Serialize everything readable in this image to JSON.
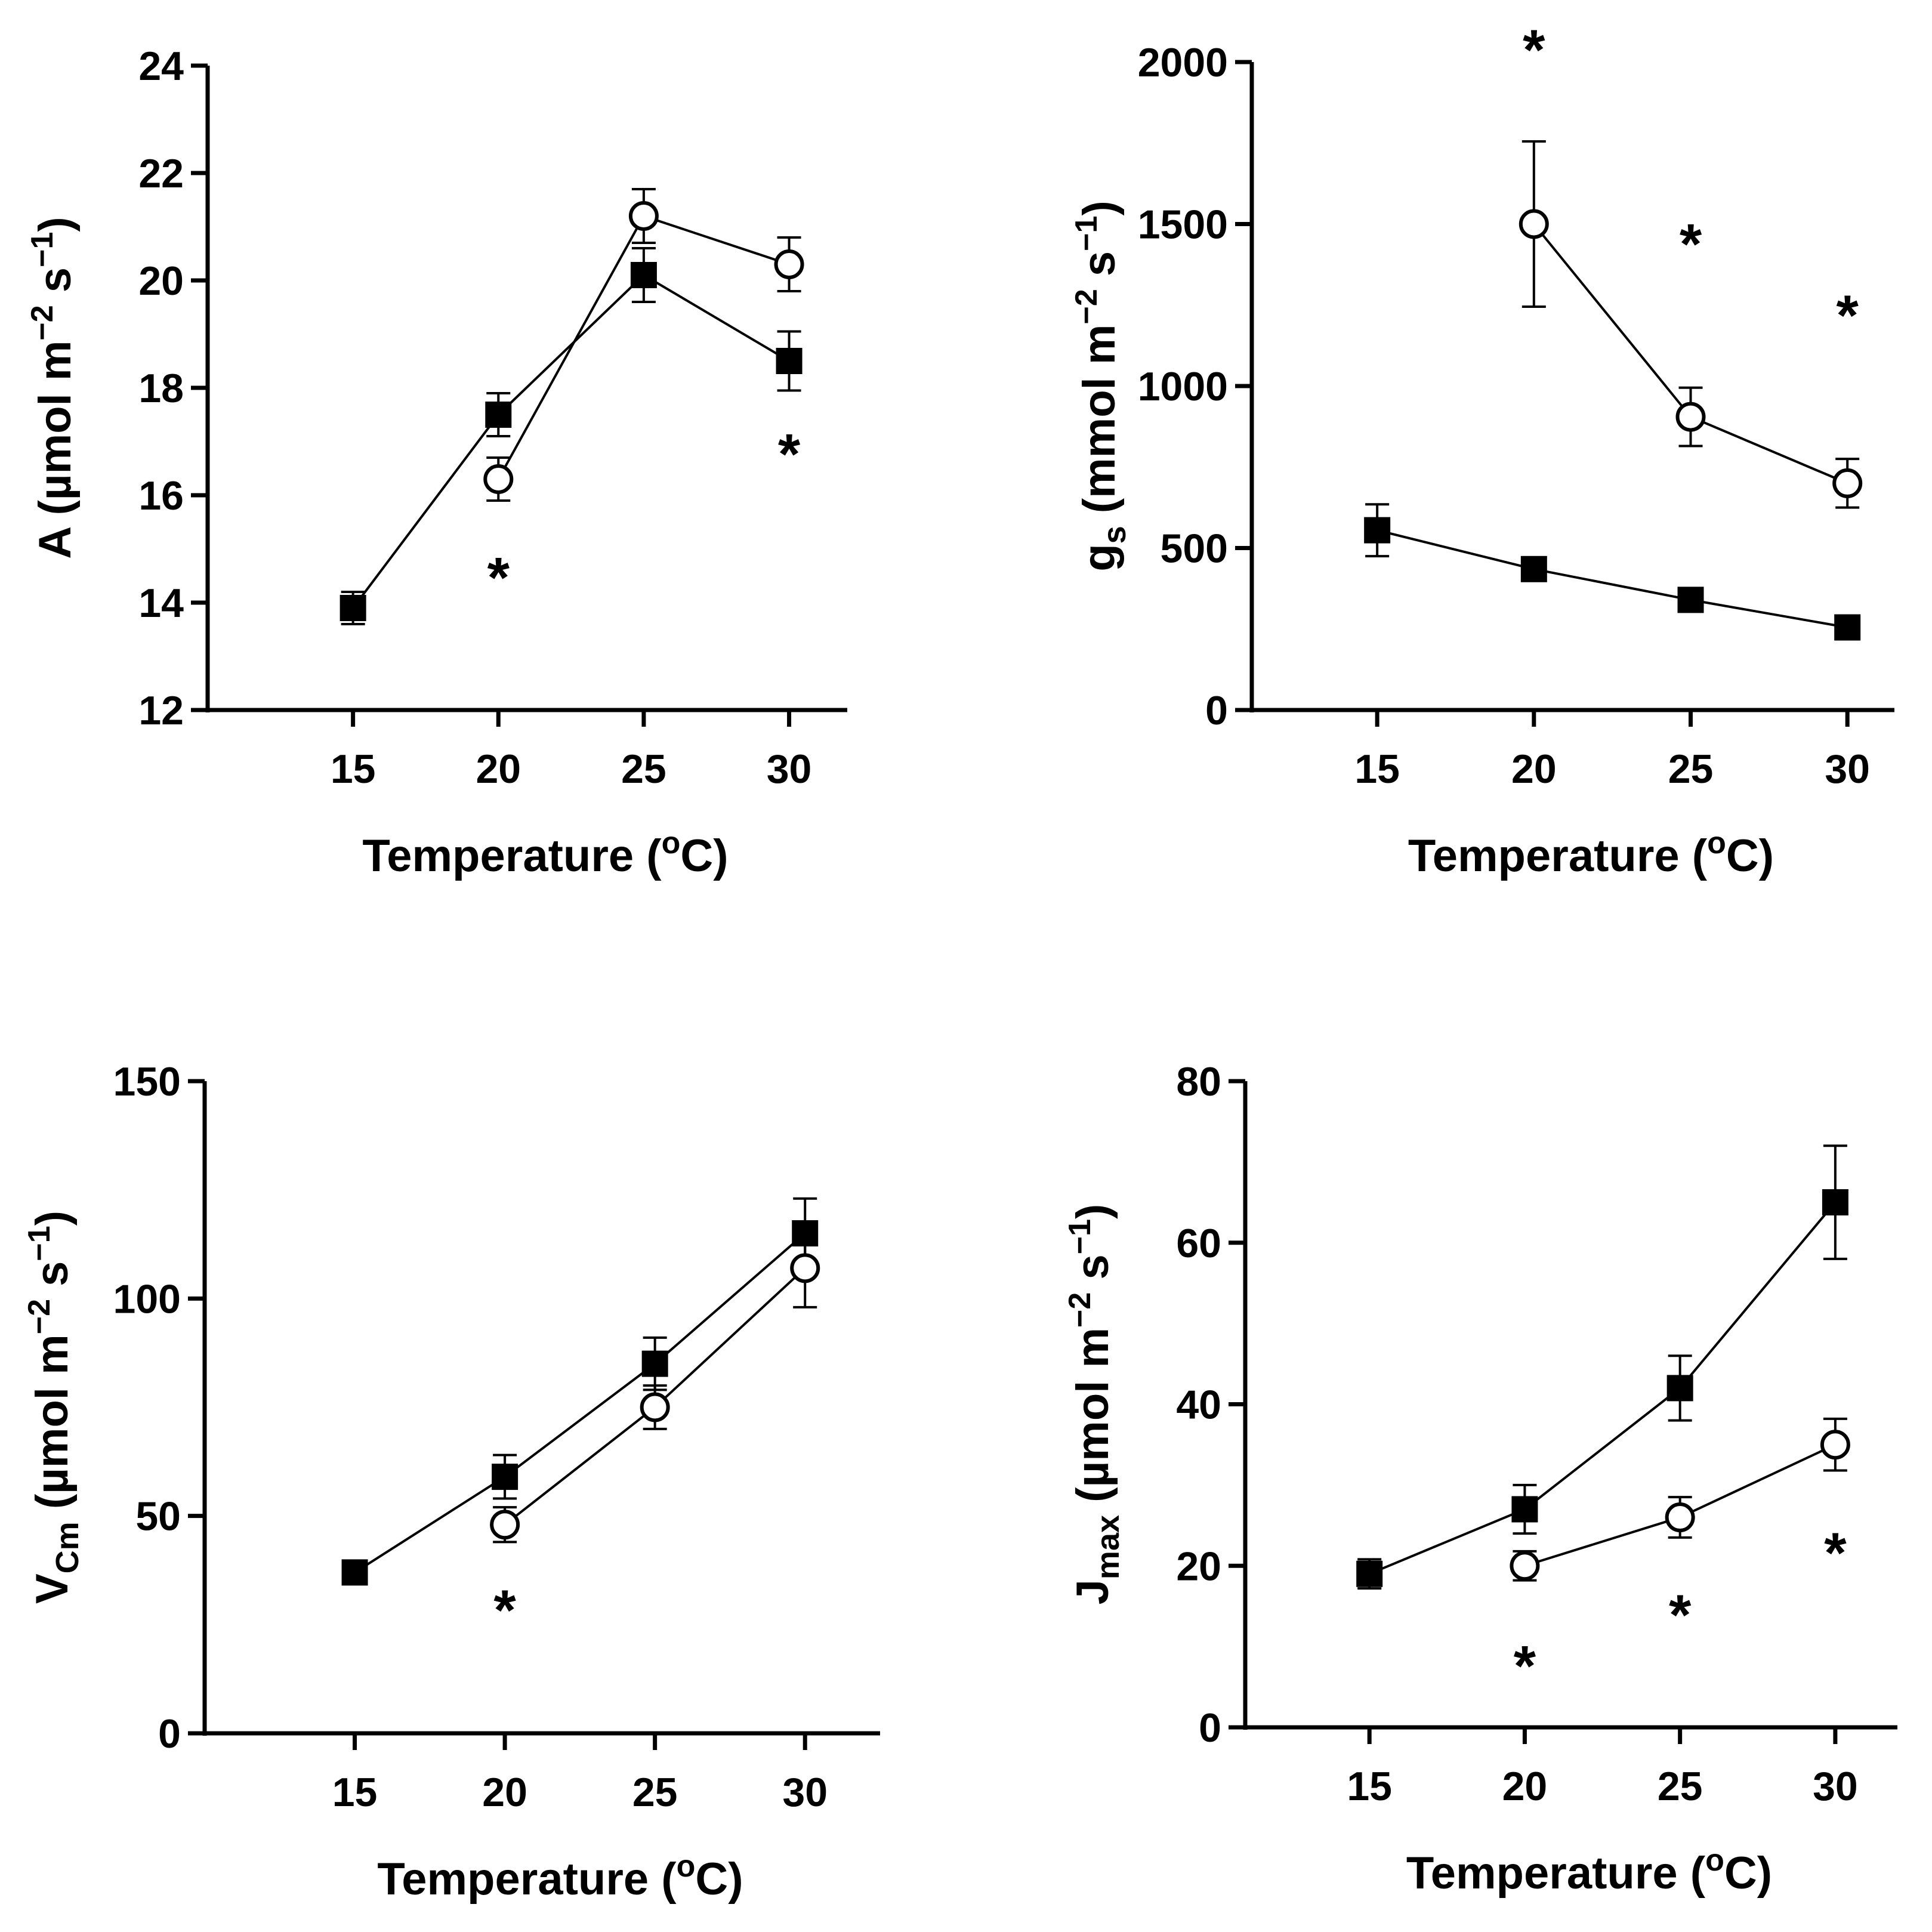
{
  "figure_title": "",
  "chart_data": [
    {
      "type": "line",
      "panel": "A",
      "xlabel": "Temperature (oC)",
      "ylabel": "A (µmol m−2 s−1)",
      "ylabel_parts": {
        "main": "A (µmol m",
        "sup1": "−2",
        "mid": " s",
        "sup2": "−1",
        "end": ")"
      },
      "xlabel_parts": {
        "pre": "Temperature (",
        "sup": "o",
        "post": "C)"
      },
      "x_ticks": [
        15,
        20,
        25,
        30
      ],
      "x_tick_labels": [
        "15",
        "20",
        "25",
        "30"
      ],
      "y_ticks": [
        12,
        14,
        16,
        18,
        20,
        22,
        24
      ],
      "y_tick_labels": [
        "12",
        "14",
        "16",
        "18",
        "20",
        "22",
        "24"
      ],
      "xlim": [
        10,
        32
      ],
      "ylim": [
        12,
        24
      ],
      "series": [
        {
          "name": "filled squares",
          "marker": "square-filled",
          "x": [
            15,
            20,
            25,
            30
          ],
          "values": [
            13.9,
            17.5,
            20.1,
            18.5
          ],
          "errors": [
            0.3,
            0.4,
            0.5,
            0.55
          ]
        },
        {
          "name": "open circles",
          "marker": "circle-open",
          "x": [
            20,
            25,
            30
          ],
          "values": [
            16.3,
            21.2,
            20.3
          ],
          "errors": [
            0.4,
            0.5,
            0.5
          ]
        }
      ],
      "significance": [
        {
          "x": 20,
          "y": 14.6,
          "label": "*"
        },
        {
          "x": 30,
          "y": 16.9,
          "label": "*"
        }
      ]
    },
    {
      "type": "line",
      "panel": "gs",
      "xlabel": "Temperature (oC)",
      "ylabel": "gs (mmol m−2 s−1)",
      "ylabel_parts": {
        "main": "g",
        "sub": "s",
        "rest": " (mmol m",
        "sup1": "−2",
        "mid": " s",
        "sup2": "−1",
        "end": ")"
      },
      "xlabel_parts": {
        "pre": "Temperature (",
        "sup": "o",
        "post": "C)"
      },
      "x_ticks": [
        15,
        20,
        25,
        30
      ],
      "x_tick_labels": [
        "15",
        "20",
        "25",
        "30"
      ],
      "y_ticks": [
        0,
        500,
        1000,
        1500,
        2000
      ],
      "y_tick_labels": [
        "0",
        "500",
        "1000",
        "1500",
        "2000"
      ],
      "xlim": [
        11,
        31.5
      ],
      "ylim": [
        0,
        2000
      ],
      "series": [
        {
          "name": "filled squares",
          "marker": "square-filled",
          "x": [
            15,
            20,
            25,
            30
          ],
          "values": [
            555,
            435,
            340,
            255
          ],
          "errors": [
            80,
            35,
            25,
            20
          ]
        },
        {
          "name": "open circles",
          "marker": "circle-open",
          "x": [
            20,
            25,
            30
          ],
          "values": [
            1500,
            905,
            700
          ],
          "errors": [
            255,
            90,
            75
          ]
        }
      ],
      "significance": [
        {
          "x": 20,
          "y": 2060,
          "label": "*"
        },
        {
          "x": 25,
          "y": 1460,
          "label": "*"
        },
        {
          "x": 30,
          "y": 1240,
          "label": "*"
        }
      ]
    },
    {
      "type": "line",
      "panel": "VCm",
      "xlabel": "Temperature (oC)",
      "ylabel": "VCm (µmol m−2 s−1)",
      "ylabel_parts": {
        "main": "V",
        "sub": "Cm",
        "rest": " (µmol m",
        "sup1": "−2",
        "mid": " s",
        "sup2": "−1",
        "end": ")"
      },
      "xlabel_parts": {
        "pre": "Temperature (",
        "sup": "o",
        "post": "C)"
      },
      "x_ticks": [
        15,
        20,
        25,
        30
      ],
      "x_tick_labels": [
        "15",
        "20",
        "25",
        "30"
      ],
      "y_ticks": [
        0,
        50,
        100,
        150
      ],
      "y_tick_labels": [
        "0",
        "50",
        "100",
        "150"
      ],
      "xlim": [
        10,
        32.5
      ],
      "ylim": [
        0,
        150
      ],
      "series": [
        {
          "name": "filled squares",
          "marker": "square-filled",
          "x": [
            15,
            20,
            25,
            30
          ],
          "values": [
            37,
            59,
            85,
            115
          ],
          "errors": [
            1.5,
            5,
            6,
            8
          ]
        },
        {
          "name": "open circles",
          "marker": "circle-open",
          "x": [
            20,
            25,
            30
          ],
          "values": [
            48,
            75,
            107
          ],
          "errors": [
            4,
            5,
            9
          ]
        }
      ],
      "significance": [
        {
          "x": 20,
          "y": 30,
          "label": "*"
        }
      ]
    },
    {
      "type": "line",
      "panel": "Jmax",
      "xlabel": "Temperature (oC)",
      "ylabel": "Jmax (µmol m−2 s−1)",
      "ylabel_parts": {
        "main": "J",
        "sub": "max",
        "rest": " (µmol m",
        "sup1": "−2",
        "mid": " s",
        "sup2": "−1",
        "end": ")"
      },
      "xlabel_parts": {
        "pre": "Temperature (",
        "sup": "o",
        "post": "C)"
      },
      "x_ticks": [
        15,
        20,
        25,
        30
      ],
      "x_tick_labels": [
        "15",
        "20",
        "25",
        "30"
      ],
      "y_ticks": [
        0,
        20,
        40,
        60,
        80
      ],
      "y_tick_labels": [
        "0",
        "20",
        "40",
        "60",
        "80"
      ],
      "xlim": [
        11,
        32
      ],
      "ylim": [
        0,
        80
      ],
      "series": [
        {
          "name": "filled squares",
          "marker": "square-filled",
          "x": [
            15,
            20,
            25,
            30
          ],
          "values": [
            19,
            27,
            42,
            65
          ],
          "errors": [
            1.8,
            3,
            4,
            7
          ]
        },
        {
          "name": "open circles",
          "marker": "circle-open",
          "x": [
            20,
            25,
            30
          ],
          "values": [
            20,
            26,
            35
          ],
          "errors": [
            1.8,
            2.5,
            3.2
          ]
        }
      ],
      "significance": [
        {
          "x": 20,
          "y": 8.5,
          "label": "*"
        },
        {
          "x": 25,
          "y": 14.8,
          "label": "*"
        },
        {
          "x": 30,
          "y": 22.5,
          "label": "*"
        }
      ]
    }
  ]
}
